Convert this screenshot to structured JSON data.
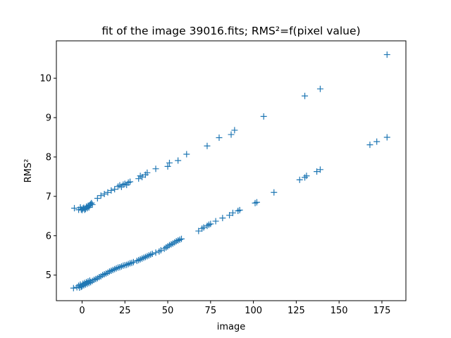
{
  "chart_data": {
    "type": "scatter",
    "title": "fit of the image 39016.fits; RMS²=f(pixel value)",
    "xlabel": "image",
    "ylabel": "RMS²",
    "xlim": [
      -15,
      189
    ],
    "ylim": [
      4.35,
      10.95
    ],
    "xticks": [
      0,
      25,
      50,
      75,
      100,
      125,
      150,
      175
    ],
    "yticks": [
      5,
      6,
      7,
      8,
      9,
      10
    ],
    "grid": false,
    "legend": "none",
    "marker": "+",
    "color": "#1f77b4",
    "series": [
      {
        "values": [
          [
            -4.5,
            6.7
          ],
          [
            -2,
            6.66
          ],
          [
            -1,
            6.72
          ],
          [
            -0.5,
            6.67
          ],
          [
            0,
            6.65
          ],
          [
            0.5,
            6.69
          ],
          [
            1,
            6.71
          ],
          [
            1.5,
            6.66
          ],
          [
            2,
            6.68
          ],
          [
            2.5,
            6.74
          ],
          [
            3,
            6.7
          ],
          [
            3.5,
            6.76
          ],
          [
            4,
            6.72
          ],
          [
            4.5,
            6.78
          ],
          [
            5,
            6.8
          ],
          [
            5.5,
            6.83
          ],
          [
            6,
            6.79
          ],
          [
            9,
            6.95
          ],
          [
            11,
            7.02
          ],
          [
            13,
            7.06
          ],
          [
            15,
            7.1
          ],
          [
            17,
            7.15
          ],
          [
            19,
            7.18
          ],
          [
            21,
            7.25
          ],
          [
            22,
            7.28
          ],
          [
            23,
            7.24
          ],
          [
            24,
            7.3
          ],
          [
            25,
            7.32
          ],
          [
            26,
            7.29
          ],
          [
            27,
            7.35
          ],
          [
            28,
            7.37
          ],
          [
            33,
            7.45
          ],
          [
            34,
            7.52
          ],
          [
            35,
            7.49
          ],
          [
            37,
            7.55
          ],
          [
            38,
            7.6
          ],
          [
            43,
            7.7
          ],
          [
            50,
            7.76
          ],
          [
            51,
            7.85
          ],
          [
            56,
            7.91
          ],
          [
            61,
            8.07
          ],
          [
            73,
            8.28
          ],
          [
            80,
            8.49
          ],
          [
            87,
            8.57
          ],
          [
            89,
            8.68
          ],
          [
            106,
            9.03
          ],
          [
            130,
            9.55
          ],
          [
            139,
            9.73
          ],
          [
            178,
            10.6
          ]
        ]
      },
      {
        "values": [
          [
            -5,
            4.67
          ],
          [
            -3,
            4.69
          ],
          [
            -2,
            4.73
          ],
          [
            -1.5,
            4.68
          ],
          [
            -1,
            4.76
          ],
          [
            -0.5,
            4.7
          ],
          [
            0,
            4.72
          ],
          [
            0.5,
            4.78
          ],
          [
            1,
            4.74
          ],
          [
            1.5,
            4.8
          ],
          [
            2,
            4.76
          ],
          [
            2.5,
            4.82
          ],
          [
            3,
            4.78
          ],
          [
            3.5,
            4.84
          ],
          [
            4,
            4.8
          ],
          [
            4.5,
            4.86
          ],
          [
            5,
            4.82
          ],
          [
            6,
            4.85
          ],
          [
            7,
            4.88
          ],
          [
            8,
            4.9
          ],
          [
            9,
            4.92
          ],
          [
            10,
            4.95
          ],
          [
            11,
            4.97
          ],
          [
            12,
            5.0
          ],
          [
            13,
            5.02
          ],
          [
            14,
            5.04
          ],
          [
            15,
            5.06
          ],
          [
            16,
            5.09
          ],
          [
            17,
            5.11
          ],
          [
            18,
            5.13
          ],
          [
            19,
            5.15
          ],
          [
            20,
            5.17
          ],
          [
            21,
            5.19
          ],
          [
            22,
            5.2
          ],
          [
            23,
            5.22
          ],
          [
            24,
            5.24
          ],
          [
            25,
            5.25
          ],
          [
            26,
            5.26
          ],
          [
            27,
            5.28
          ],
          [
            28,
            5.3
          ],
          [
            29,
            5.31
          ],
          [
            30,
            5.33
          ],
          [
            32,
            5.36
          ],
          [
            33,
            5.38
          ],
          [
            34,
            5.4
          ],
          [
            35,
            5.42
          ],
          [
            36,
            5.44
          ],
          [
            37,
            5.46
          ],
          [
            38,
            5.48
          ],
          [
            39,
            5.5
          ],
          [
            40,
            5.52
          ],
          [
            41,
            5.54
          ],
          [
            43,
            5.57
          ],
          [
            45,
            5.6
          ],
          [
            46,
            5.63
          ],
          [
            48,
            5.67
          ],
          [
            49,
            5.7
          ],
          [
            50,
            5.73
          ],
          [
            51,
            5.76
          ],
          [
            52,
            5.78
          ],
          [
            53,
            5.8
          ],
          [
            54,
            5.83
          ],
          [
            55,
            5.86
          ],
          [
            56,
            5.88
          ],
          [
            57,
            5.9
          ],
          [
            58,
            5.92
          ],
          [
            68,
            6.12
          ],
          [
            70,
            6.18
          ],
          [
            71,
            6.21
          ],
          [
            73,
            6.25
          ],
          [
            74,
            6.28
          ],
          [
            75,
            6.3
          ],
          [
            78,
            6.37
          ],
          [
            82,
            6.45
          ],
          [
            86,
            6.52
          ],
          [
            88,
            6.58
          ],
          [
            91,
            6.63
          ],
          [
            92,
            6.65
          ],
          [
            101,
            6.83
          ],
          [
            102,
            6.85
          ],
          [
            112,
            7.1
          ],
          [
            127,
            7.42
          ],
          [
            130,
            7.48
          ],
          [
            131,
            7.52
          ],
          [
            137,
            7.63
          ],
          [
            139,
            7.68
          ],
          [
            168,
            8.31
          ],
          [
            172,
            8.39
          ],
          [
            178,
            8.5
          ]
        ]
      }
    ]
  }
}
